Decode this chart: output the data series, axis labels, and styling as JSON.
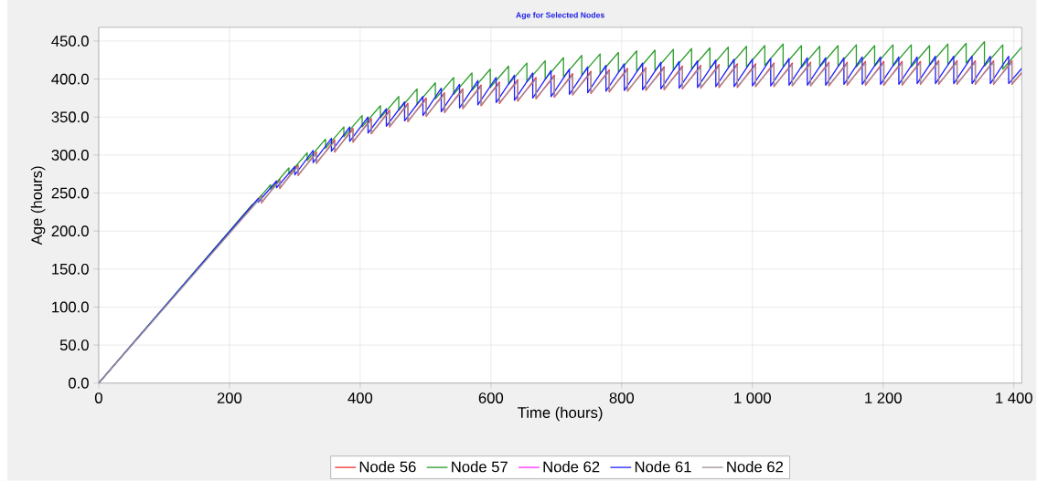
{
  "chart_data": {
    "type": "line",
    "title": "Age for Selected Nodes",
    "xlabel": "Time (hours)",
    "ylabel": "Age (hours)",
    "xlim": [
      0,
      1412
    ],
    "ylim": [
      0,
      468
    ],
    "xticks": [
      0,
      200,
      400,
      600,
      800,
      {
        "value": 1000,
        "label": "1 000"
      },
      {
        "value": 1200,
        "label": "1 200"
      },
      {
        "value": 1400,
        "label": "1 400"
      }
    ],
    "yticks": [
      {
        "value": 0,
        "label": "0.0"
      },
      {
        "value": 50,
        "label": "50.0"
      },
      {
        "value": 100,
        "label": "100.0"
      },
      {
        "value": 150,
        "label": "150.0"
      },
      {
        "value": 200,
        "label": "200.0"
      },
      {
        "value": 250,
        "label": "250.0"
      },
      {
        "value": 300,
        "label": "300.0"
      },
      {
        "value": 350,
        "label": "350.0"
      },
      {
        "value": 400,
        "label": "400.0"
      },
      {
        "value": 450,
        "label": "450.0"
      }
    ],
    "grid": true,
    "legend": "bottom",
    "line_style": "solid",
    "series": [
      {
        "name": "Node 56",
        "color": "#ee3333",
        "x": [
          0,
          249,
          249,
          277,
          277,
          305,
          305,
          333,
          333,
          361,
          361,
          389,
          389,
          417,
          417,
          445,
          445,
          473,
          473,
          501,
          501,
          529,
          529,
          557,
          557,
          585,
          585,
          613,
          613,
          641,
          641,
          669,
          669,
          697,
          697,
          725,
          725,
          753,
          753,
          781,
          781,
          809,
          809,
          837,
          837,
          865,
          865,
          893,
          893,
          921,
          921,
          949,
          949,
          977,
          977,
          1005,
          1005,
          1033,
          1033,
          1061,
          1061,
          1089,
          1089,
          1117,
          1117,
          1145,
          1145,
          1173,
          1173,
          1201,
          1201,
          1229,
          1229,
          1257,
          1257,
          1285,
          1285,
          1313,
          1313,
          1341,
          1341,
          1369,
          1369,
          1397,
          1397,
          1412
        ],
        "values": [
          0,
          247,
          237,
          268,
          256,
          287,
          273,
          304,
          289,
          320,
          304,
          335,
          317,
          348,
          328,
          359,
          337,
          368,
          344,
          375,
          351,
          382,
          356,
          387,
          361,
          392,
          365,
          396,
          368,
          399,
          371,
          402,
          374,
          405,
          376,
          407,
          379,
          410,
          381,
          412,
          383,
          414,
          384,
          415,
          385,
          416,
          386,
          417,
          387,
          418,
          388,
          419,
          389,
          420,
          389,
          420,
          390,
          421,
          390,
          421,
          391,
          422,
          391,
          422,
          391,
          422,
          392,
          423,
          392,
          423,
          392,
          423,
          392,
          423,
          393,
          424,
          393,
          424,
          393,
          424,
          393,
          424,
          393,
          424,
          393,
          408
        ]
      },
      {
        "name": "Node 57",
        "color": "#2e9e2e",
        "x": [
          0,
          235,
          235,
          263,
          263,
          291,
          291,
          319,
          319,
          347,
          347,
          375,
          375,
          403,
          403,
          431,
          431,
          459,
          459,
          487,
          487,
          515,
          515,
          543,
          543,
          571,
          571,
          599,
          599,
          627,
          627,
          655,
          655,
          683,
          683,
          711,
          711,
          739,
          739,
          767,
          767,
          795,
          795,
          823,
          823,
          851,
          851,
          879,
          879,
          907,
          907,
          935,
          935,
          963,
          963,
          991,
          991,
          1019,
          1019,
          1047,
          1047,
          1075,
          1075,
          1103,
          1103,
          1131,
          1131,
          1159,
          1159,
          1187,
          1187,
          1215,
          1215,
          1243,
          1243,
          1271,
          1271,
          1299,
          1299,
          1327,
          1327,
          1355,
          1355,
          1383,
          1383,
          1412
        ],
        "values": [
          0,
          235,
          233,
          261,
          255,
          283,
          275,
          303,
          293,
          321,
          309,
          337,
          324,
          352,
          337,
          365,
          349,
          377,
          359,
          387,
          367,
          395,
          374,
          402,
          380,
          408,
          385,
          413,
          389,
          417,
          393,
          421,
          396,
          424,
          400,
          428,
          403,
          431,
          405,
          433,
          407,
          435,
          409,
          437,
          410,
          438,
          411,
          439,
          412,
          440,
          413,
          441,
          414,
          442,
          415,
          443,
          416,
          444,
          418,
          446,
          416,
          444,
          415,
          443,
          416,
          444,
          417,
          445,
          416,
          444,
          417,
          445,
          417,
          445,
          416,
          444,
          418,
          446,
          419,
          447,
          421,
          449,
          417,
          445,
          413,
          442
        ]
      },
      {
        "name": "Node 62",
        "color": "#ff33ff"
      },
      {
        "name": "Node 61",
        "color": "#2222ff",
        "x": [
          0,
          244,
          244,
          272,
          272,
          300,
          300,
          328,
          328,
          356,
          356,
          384,
          384,
          412,
          412,
          440,
          440,
          468,
          468,
          496,
          496,
          524,
          524,
          552,
          552,
          580,
          580,
          608,
          608,
          636,
          636,
          664,
          664,
          692,
          692,
          720,
          720,
          748,
          748,
          776,
          776,
          804,
          804,
          832,
          832,
          860,
          860,
          888,
          888,
          916,
          916,
          944,
          944,
          972,
          972,
          1000,
          1000,
          1028,
          1028,
          1056,
          1056,
          1084,
          1084,
          1112,
          1112,
          1140,
          1140,
          1168,
          1168,
          1196,
          1196,
          1224,
          1224,
          1252,
          1252,
          1280,
          1280,
          1308,
          1308,
          1336,
          1336,
          1364,
          1364,
          1392,
          1392,
          1412
        ],
        "values": [
          0,
          243,
          238,
          266,
          257,
          285,
          274,
          306,
          290,
          322,
          305,
          337,
          318,
          350,
          329,
          361,
          338,
          370,
          345,
          377,
          352,
          388,
          357,
          393,
          362,
          398,
          366,
          402,
          369,
          405,
          372,
          408,
          375,
          411,
          377,
          413,
          380,
          416,
          382,
          418,
          384,
          420,
          385,
          421,
          386,
          422,
          387,
          423,
          388,
          424,
          389,
          425,
          390,
          426,
          390,
          426,
          391,
          427,
          391,
          427,
          392,
          428,
          392,
          428,
          392,
          428,
          393,
          429,
          393,
          429,
          393,
          429,
          393,
          429,
          394,
          430,
          394,
          430,
          394,
          430,
          394,
          430,
          394,
          430,
          394,
          414
        ]
      },
      {
        "name": "Node 62",
        "color": "#a0929c",
        "x": [
          0,
          249,
          249,
          277,
          277,
          305,
          305,
          333,
          333,
          361,
          361,
          389,
          389,
          417,
          417,
          445,
          445,
          473,
          473,
          501,
          501,
          529,
          529,
          557,
          557,
          585,
          585,
          613,
          613,
          641,
          641,
          669,
          669,
          697,
          697,
          725,
          725,
          753,
          753,
          781,
          781,
          809,
          809,
          837,
          837,
          865,
          865,
          893,
          893,
          921,
          921,
          949,
          949,
          977,
          977,
          1005,
          1005,
          1033,
          1033,
          1061,
          1061,
          1089,
          1089,
          1117,
          1117,
          1145,
          1145,
          1173,
          1173,
          1201,
          1201,
          1229,
          1229,
          1257,
          1257,
          1285,
          1285,
          1313,
          1313,
          1341,
          1341,
          1369,
          1369,
          1397,
          1397,
          1412
        ],
        "values": [
          0,
          245,
          238,
          266,
          257,
          285,
          274,
          302,
          290,
          318,
          305,
          333,
          318,
          346,
          329,
          357,
          338,
          366,
          345,
          373,
          352,
          380,
          357,
          385,
          362,
          390,
          366,
          394,
          369,
          397,
          372,
          400,
          375,
          403,
          377,
          405,
          380,
          408,
          382,
          410,
          384,
          412,
          385,
          413,
          386,
          414,
          387,
          415,
          388,
          416,
          389,
          417,
          390,
          418,
          390,
          418,
          391,
          419,
          391,
          419,
          392,
          420,
          392,
          420,
          392,
          420,
          393,
          421,
          393,
          421,
          393,
          421,
          393,
          421,
          394,
          422,
          394,
          422,
          394,
          422,
          394,
          422,
          394,
          422,
          394,
          409
        ]
      }
    ]
  }
}
